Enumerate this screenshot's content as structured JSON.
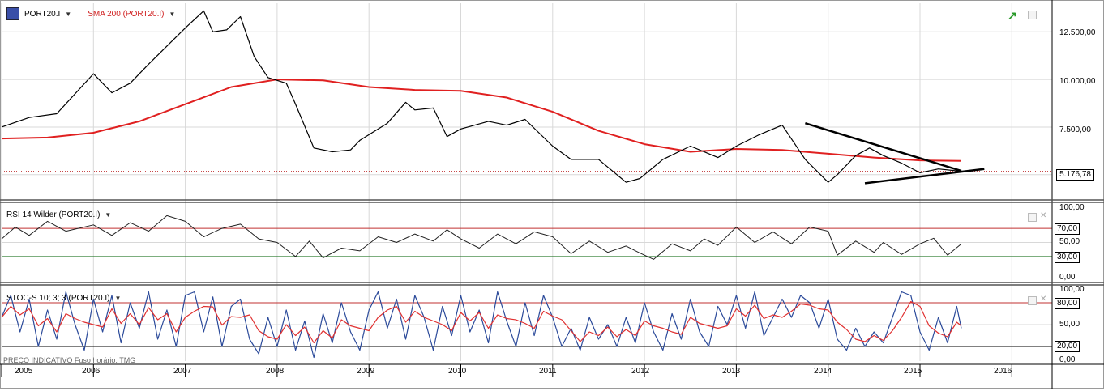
{
  "instrument": {
    "symbol": "PORT20.I",
    "indicator": "SMA 200 (PORT20.I)",
    "last_value_tag": "5.176,78"
  },
  "colors": {
    "price": "#000000",
    "sma": "#e02020",
    "rsi_upper": "#c03030",
    "rsi_lower": "#2e7d32",
    "stoch_k": "#2b4a9a",
    "stoch_d": "#e03030",
    "grid": "#d8d8d8"
  },
  "panels": {
    "price": {
      "y_ticks": [
        "12.500,00",
        "10.000,00",
        "7.500,00"
      ]
    },
    "rsi": {
      "title": "RSI 14 Wilder (PORT20.I)",
      "y_ticks": [
        "100,00",
        "70,00",
        "50,00",
        "30,00",
        "0,00"
      ]
    },
    "stoch": {
      "title": "STOC-S 10; 3; 3 (PORT20.I)",
      "y_ticks": [
        "100,00",
        "80,00",
        "50,00",
        "20,00",
        "0,00"
      ]
    }
  },
  "footer_note": "PREÇO INDICATIVO   Fuso horário: TMG",
  "chart_data": [
    {
      "type": "line",
      "name_label": "PORT20.I",
      "x_ticks": [
        "2005",
        "2006",
        "2007",
        "2008",
        "2009",
        "2010",
        "2011",
        "2012",
        "2013",
        "2014",
        "2015",
        "2016"
      ],
      "ylim": [
        3800,
        14000
      ],
      "series": [
        {
          "name": "PORT20.I",
          "x": [
            2005.0,
            2005.3,
            2005.6,
            2006.0,
            2006.2,
            2006.4,
            2006.6,
            2007.0,
            2007.2,
            2007.3,
            2007.45,
            2007.6,
            2007.75,
            2007.9,
            2008.1,
            2008.2,
            2008.4,
            2008.6,
            2008.8,
            2008.9,
            2009.2,
            2009.4,
            2009.5,
            2009.7,
            2009.85,
            2010.0,
            2010.3,
            2010.5,
            2010.7,
            2011.0,
            2011.2,
            2011.5,
            2011.8,
            2011.95,
            2012.2,
            2012.5,
            2012.8,
            2013.0,
            2013.25,
            2013.5,
            2013.75,
            2014.0,
            2014.1,
            2014.3,
            2014.45,
            2014.6,
            2014.8,
            2015.0,
            2015.2,
            2015.45
          ],
          "values": [
            7500,
            8000,
            8200,
            10300,
            9300,
            9800,
            10800,
            12700,
            13600,
            12500,
            12600,
            13300,
            11200,
            10100,
            9800,
            8700,
            6400,
            6200,
            6300,
            6800,
            7700,
            8800,
            8400,
            8500,
            7000,
            7400,
            7800,
            7600,
            7900,
            6500,
            5800,
            5800,
            4600,
            4800,
            5800,
            6500,
            5900,
            6500,
            7100,
            7600,
            5800,
            4600,
            5000,
            6000,
            6400,
            6000,
            5600,
            5100,
            5300,
            5176.78
          ]
        },
        {
          "name": "SMA 200 (PORT20.I)",
          "x": [
            2005.0,
            2005.5,
            2006.0,
            2006.5,
            2007.0,
            2007.5,
            2008.0,
            2008.5,
            2009.0,
            2009.5,
            2010.0,
            2010.5,
            2011.0,
            2011.5,
            2012.0,
            2012.5,
            2013.0,
            2013.5,
            2014.0,
            2014.5,
            2015.0,
            2015.45
          ],
          "values": [
            6900,
            6950,
            7200,
            7800,
            8700,
            9600,
            10000,
            9950,
            9600,
            9450,
            9400,
            9050,
            8300,
            7300,
            6600,
            6200,
            6350,
            6300,
            6100,
            5900,
            5750,
            5720
          ]
        }
      ]
    },
    {
      "type": "line",
      "title": "RSI 14 Wilder (PORT20.I)",
      "ylim": [
        0,
        100
      ],
      "reference_lines": [
        70,
        30
      ],
      "series": [
        {
          "name": "RSI 14 Wilder (PORT20.I)",
          "x": [
            2005.0,
            2005.15,
            2005.3,
            2005.5,
            2005.7,
            2006.0,
            2006.2,
            2006.4,
            2006.6,
            2006.8,
            2007.0,
            2007.2,
            2007.4,
            2007.6,
            2007.8,
            2008.0,
            2008.2,
            2008.35,
            2008.5,
            2008.7,
            2008.9,
            2009.1,
            2009.3,
            2009.5,
            2009.7,
            2009.85,
            2010.0,
            2010.2,
            2010.4,
            2010.6,
            2010.8,
            2011.0,
            2011.2,
            2011.4,
            2011.6,
            2011.8,
            2011.95,
            2012.1,
            2012.3,
            2012.5,
            2012.65,
            2012.8,
            2013.0,
            2013.2,
            2013.4,
            2013.6,
            2013.8,
            2014.0,
            2014.1,
            2014.3,
            2014.5,
            2014.6,
            2014.8,
            2015.0,
            2015.15,
            2015.3,
            2015.45
          ],
          "values": [
            55,
            72,
            60,
            80,
            66,
            75,
            60,
            78,
            66,
            88,
            80,
            58,
            70,
            76,
            55,
            50,
            30,
            52,
            28,
            42,
            38,
            58,
            50,
            62,
            52,
            68,
            55,
            42,
            62,
            48,
            65,
            58,
            34,
            52,
            36,
            45,
            35,
            26,
            48,
            38,
            55,
            46,
            72,
            50,
            65,
            48,
            72,
            66,
            32,
            52,
            36,
            50,
            33,
            48,
            56,
            32,
            48
          ]
        }
      ]
    },
    {
      "type": "line",
      "title": "STOC-S 10; 3; 3 (PORT20.I)",
      "ylim": [
        0,
        100
      ],
      "reference_lines": [
        80,
        20
      ],
      "series": [
        {
          "name": "STOC-S 10; 3; 3 (PORT20.I)",
          "x": [
            2005.0,
            2005.1,
            2005.2,
            2005.3,
            2005.4,
            2005.5,
            2005.6,
            2005.7,
            2005.8,
            2005.9,
            2006.0,
            2006.1,
            2006.2,
            2006.3,
            2006.4,
            2006.5,
            2006.6,
            2006.7,
            2006.8,
            2006.9,
            2007.0,
            2007.1,
            2007.2,
            2007.3,
            2007.4,
            2007.5,
            2007.6,
            2007.7,
            2007.8,
            2007.9,
            2008.0,
            2008.1,
            2008.2,
            2008.3,
            2008.4,
            2008.5,
            2008.6,
            2008.7,
            2008.8,
            2008.9,
            2009.0,
            2009.1,
            2009.2,
            2009.3,
            2009.4,
            2009.5,
            2009.6,
            2009.7,
            2009.8,
            2009.9,
            2010.0,
            2010.1,
            2010.2,
            2010.3,
            2010.4,
            2010.5,
            2010.6,
            2010.7,
            2010.8,
            2010.9,
            2011.0,
            2011.1,
            2011.2,
            2011.3,
            2011.4,
            2011.5,
            2011.6,
            2011.7,
            2011.8,
            2011.9,
            2012.0,
            2012.1,
            2012.2,
            2012.3,
            2012.4,
            2012.5,
            2012.6,
            2012.7,
            2012.8,
            2012.9,
            2013.0,
            2013.1,
            2013.2,
            2013.3,
            2013.4,
            2013.5,
            2013.6,
            2013.7,
            2013.8,
            2013.9,
            2014.0,
            2014.1,
            2014.2,
            2014.3,
            2014.4,
            2014.5,
            2014.6,
            2014.7,
            2014.8,
            2014.9,
            2015.0,
            2015.1,
            2015.2,
            2015.3,
            2015.4,
            2015.45
          ],
          "values": [
            60,
            90,
            40,
            85,
            20,
            70,
            30,
            95,
            50,
            15,
            85,
            40,
            90,
            25,
            80,
            45,
            95,
            30,
            70,
            20,
            90,
            95,
            40,
            88,
            20,
            75,
            85,
            30,
            10,
            60,
            20,
            70,
            15,
            55,
            5,
            65,
            25,
            80,
            40,
            15,
            70,
            95,
            45,
            85,
            30,
            90,
            60,
            15,
            75,
            35,
            90,
            40,
            70,
            25,
            95,
            55,
            20,
            80,
            35,
            90,
            60,
            20,
            45,
            15,
            60,
            30,
            50,
            20,
            60,
            25,
            80,
            40,
            15,
            65,
            30,
            85,
            40,
            20,
            75,
            50,
            90,
            45,
            95,
            35,
            60,
            85,
            60,
            90,
            80,
            45,
            85,
            30,
            15,
            45,
            20,
            40,
            25,
            60,
            95,
            90,
            40,
            15,
            60,
            25,
            75,
            45
          ]
        }
      ]
    }
  ]
}
